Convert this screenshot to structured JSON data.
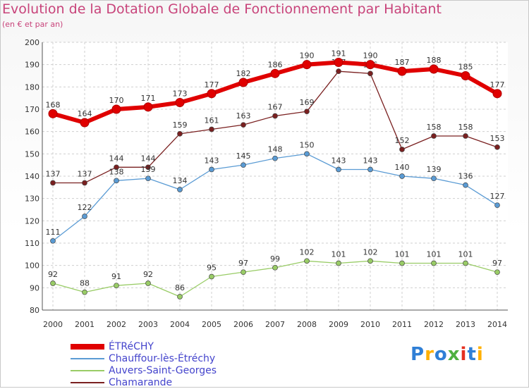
{
  "header": {
    "title": "Evolution de la Dotation Globale de Fonctionnement par Habitant",
    "subtitle": "(en € et par an)"
  },
  "logo": {
    "text": "Proxiti",
    "colors": [
      "#2f7fd6",
      "#ffb000",
      "#2f7fd6",
      "#4fb040",
      "#e53020",
      "#2f7fd6",
      "#ffb000"
    ]
  },
  "chart_data": {
    "type": "line",
    "x": [
      "2000",
      "2001",
      "2002",
      "2003",
      "2004",
      "2005",
      "2006",
      "2007",
      "2008",
      "2009",
      "2010",
      "2011",
      "2012",
      "2013",
      "2014"
    ],
    "ylim": [
      80,
      200
    ],
    "yticks": [
      80,
      90,
      100,
      110,
      120,
      130,
      140,
      150,
      160,
      170,
      180,
      190,
      200
    ],
    "grid": true,
    "legend_position": "bottom-left",
    "series": [
      {
        "name": "ÉTRéCHY",
        "color": "#e00000",
        "values": [
          168,
          164,
          170,
          171,
          173,
          177,
          182,
          186,
          190,
          191,
          190,
          187,
          188,
          185,
          177
        ]
      },
      {
        "name": "Chauffour-lès-Étréchy",
        "color": "#5a9bd4",
        "values": [
          111,
          122,
          138,
          139,
          134,
          143,
          145,
          148,
          150,
          143,
          143,
          140,
          139,
          136,
          127
        ]
      },
      {
        "name": "Auvers-Saint-Georges",
        "color": "#99cc66",
        "values": [
          92,
          88,
          91,
          92,
          86,
          95,
          97,
          99,
          102,
          101,
          102,
          101,
          101,
          101,
          97
        ]
      },
      {
        "name": "Chamarande",
        "color": "#7a2020",
        "values": [
          137,
          137,
          144,
          144,
          159,
          161,
          163,
          167,
          169,
          187,
          186,
          152,
          158,
          158,
          153
        ]
      }
    ]
  }
}
